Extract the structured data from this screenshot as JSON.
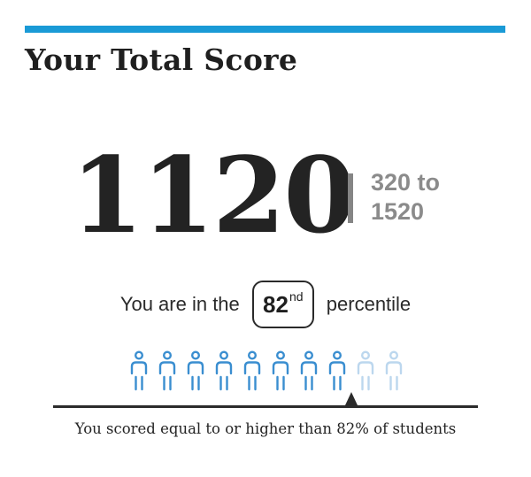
{
  "card": {
    "title": "Your Total Score",
    "accent_color": "#1a9ad6"
  },
  "score": {
    "value": "1120",
    "range_low": "320 to",
    "range_high": "1520"
  },
  "percentile": {
    "prefix": "You are in the",
    "value": "82",
    "suffix_ordinal": "nd",
    "label": "percentile",
    "percent": 82
  },
  "people_chart": {
    "total_icons": 10,
    "filled_icons": 8,
    "filled_color": "#3a8ed0",
    "empty_color": "#bcd7ee",
    "icon_name": "person-icon"
  },
  "summary": {
    "text": "You scored equal to or higher than 82% of students"
  }
}
